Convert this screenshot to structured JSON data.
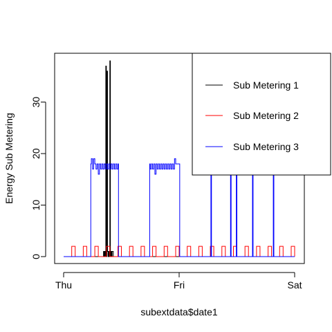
{
  "chart_data": {
    "type": "line",
    "title": "",
    "xlabel": "subextdata$date1",
    "ylabel": "Energy Sub Metering",
    "xlim": [
      0,
      2
    ],
    "ylim": [
      0,
      38
    ],
    "x_ticks": [
      {
        "value": 0,
        "label": "Thu"
      },
      {
        "value": 1,
        "label": "Fri"
      },
      {
        "value": 2,
        "label": "Sat"
      }
    ],
    "y_ticks": [
      0,
      10,
      20,
      30
    ],
    "grid": false,
    "legend_position": "top-right",
    "series": [
      {
        "name": "Sub Metering 1",
        "color": "#000000",
        "x": [
          0,
          0.34,
          0.345,
          0.35,
          0.355,
          0.36,
          0.365,
          0.37,
          0.375,
          0.38,
          0.385,
          0.39,
          0.395,
          0.4,
          0.405,
          0.41,
          0.415,
          0.42,
          0.43,
          2
        ],
        "y": [
          0,
          0,
          1,
          0,
          1,
          0,
          37,
          0,
          36,
          1,
          0,
          1,
          0,
          38,
          0,
          1,
          0,
          1,
          0,
          0
        ]
      },
      {
        "name": "Sub Metering 2",
        "color": "#ff0000",
        "x": [
          0,
          0.05,
          0.07,
          0.1,
          0.12,
          0.15,
          0.17,
          0.2,
          0.22,
          0.25,
          0.27,
          0.3,
          0.32,
          0.35,
          0.37,
          0.4,
          0.42,
          0.45,
          0.47,
          0.5,
          0.52,
          0.55,
          0.57,
          0.6,
          0.62,
          0.65,
          0.67,
          0.7,
          0.72,
          0.75,
          0.77,
          0.8,
          0.82,
          0.85,
          0.87,
          0.9,
          0.92,
          0.95,
          0.97,
          1,
          1.02,
          1.05,
          1.07,
          1.1,
          1.12,
          1.15,
          1.17,
          1.2,
          1.22,
          1.25,
          1.27,
          1.3,
          1.32,
          1.35,
          1.37,
          1.4,
          1.42,
          1.45,
          1.47,
          1.5,
          1.52,
          1.55,
          1.57,
          1.6,
          1.62,
          1.65,
          1.67,
          1.7,
          1.72,
          1.75,
          1.77,
          1.8,
          1.82,
          1.85,
          1.87,
          1.9,
          1.92,
          1.95,
          1.97,
          2
        ],
        "y": [
          0,
          0,
          2,
          0,
          0,
          0,
          2,
          0,
          0,
          0,
          2,
          0,
          0,
          0,
          2,
          0,
          0,
          0,
          2,
          0,
          0,
          0,
          2,
          0,
          0,
          0,
          2,
          0,
          0,
          0,
          2,
          0,
          0,
          0,
          2,
          0,
          0,
          0,
          2,
          0,
          0,
          0,
          2,
          0,
          0,
          0,
          2,
          0,
          0,
          0,
          2,
          0,
          0,
          0,
          2,
          0,
          0,
          0,
          2,
          0,
          0,
          0,
          2,
          0,
          0,
          0,
          2,
          0,
          0,
          0,
          2,
          0,
          0,
          0,
          2,
          0,
          0,
          0,
          2,
          0
        ]
      },
      {
        "name": "Sub Metering 3",
        "color": "#0000ff",
        "x": [
          0,
          0.23,
          0.235,
          0.24,
          0.25,
          0.26,
          0.27,
          0.28,
          0.29,
          0.3,
          0.31,
          0.32,
          0.33,
          0.34,
          0.35,
          0.36,
          0.37,
          0.38,
          0.39,
          0.4,
          0.41,
          0.42,
          0.43,
          0.44,
          0.45,
          0.46,
          0.47,
          0.475,
          0.48,
          0.74,
          0.745,
          0.75,
          0.76,
          0.77,
          0.78,
          0.79,
          0.8,
          0.81,
          0.82,
          0.83,
          0.84,
          0.85,
          0.86,
          0.87,
          0.88,
          0.89,
          0.9,
          0.91,
          0.92,
          0.93,
          0.94,
          0.95,
          0.96,
          0.97,
          1.0,
          1.005,
          1.01,
          1.27,
          1.275,
          1.28,
          1.44,
          1.445,
          1.45,
          1.49,
          1.495,
          1.5,
          1.63,
          1.635,
          1.64,
          1.81,
          1.815,
          1.82,
          2
        ],
        "y": [
          0,
          0,
          18,
          19,
          17,
          19,
          18,
          17,
          18,
          16,
          18,
          17,
          18,
          17,
          18,
          17,
          18,
          17,
          18,
          17,
          18,
          17,
          18,
          17,
          18,
          17,
          18,
          0,
          0,
          0,
          18,
          17,
          18,
          17,
          18,
          16,
          18,
          17,
          18,
          17,
          18,
          17,
          18,
          17,
          18,
          17,
          18,
          17,
          18,
          17,
          18,
          17,
          19,
          18,
          18,
          0,
          0,
          0,
          18,
          0,
          0,
          18,
          0,
          0,
          18,
          0,
          0,
          18,
          0,
          0,
          18,
          0,
          0
        ]
      }
    ]
  }
}
